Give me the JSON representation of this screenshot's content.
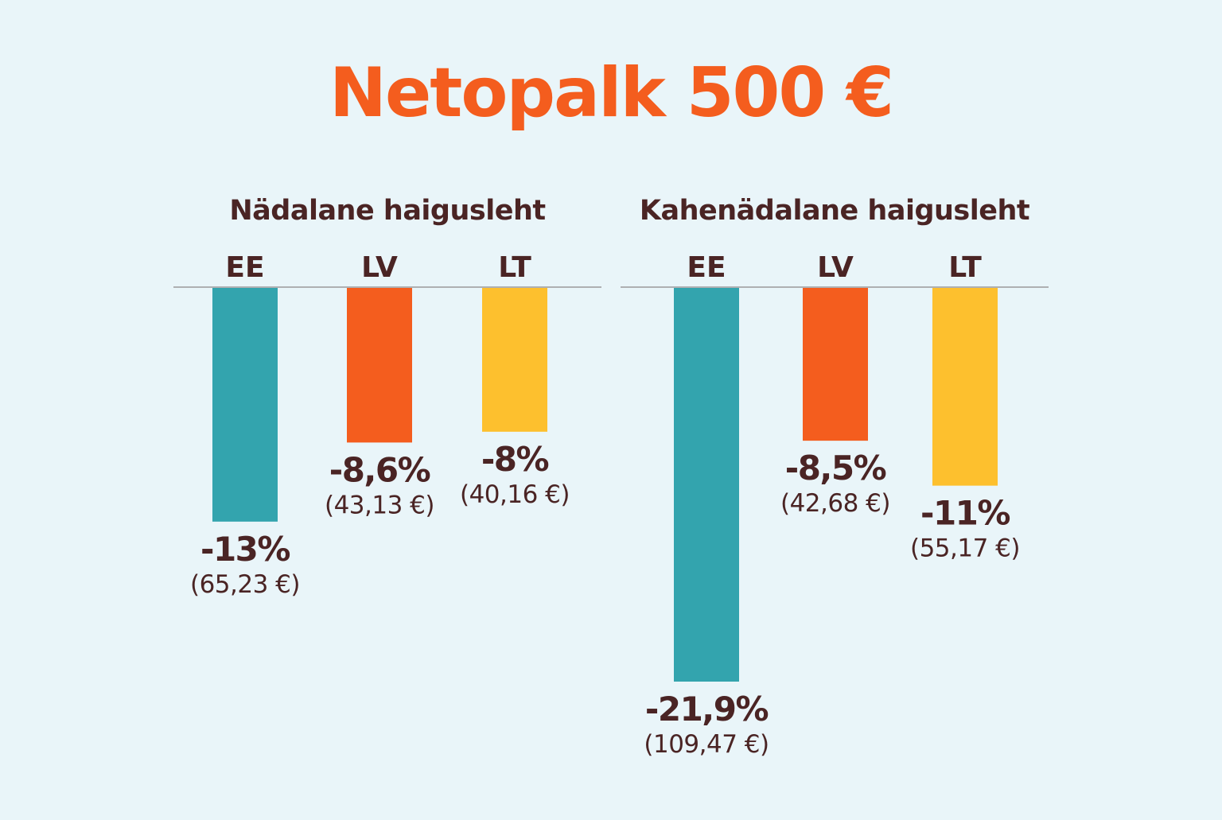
{
  "title": "Netopalk 500 €",
  "colors": {
    "background": "#e9f5f9",
    "title": "#f45d1e",
    "text": "#4a2424",
    "axis": "#9a9a9a",
    "EE": "#33a4ae",
    "LV": "#f45d1e",
    "LT": "#fdc02e"
  },
  "chart_data": [
    {
      "type": "bar",
      "title": "Nädalane haigusleht",
      "categories": [
        "EE",
        "LV",
        "LT"
      ],
      "values": [
        -13,
        -8.6,
        -8
      ],
      "value_labels": [
        "-13%",
        "-8,6%",
        "-8%"
      ],
      "amount_labels": [
        "(65,23 €)",
        "(43,13 €)",
        "(40,16 €)"
      ],
      "amounts": [
        65.23,
        43.13,
        40.16
      ],
      "ylim": [
        -21.9,
        0
      ]
    },
    {
      "type": "bar",
      "title": "Kahenädalane haigusleht",
      "categories": [
        "EE",
        "LV",
        "LT"
      ],
      "values": [
        -21.9,
        -8.5,
        -11
      ],
      "value_labels": [
        "-21,9%",
        "-8,5%",
        "-11%"
      ],
      "amount_labels": [
        "(109,47 €)",
        "(42,68 €)",
        "(55,17 €)"
      ],
      "amounts": [
        109.47,
        42.68,
        55.17
      ],
      "ylim": [
        -21.9,
        0
      ]
    }
  ]
}
